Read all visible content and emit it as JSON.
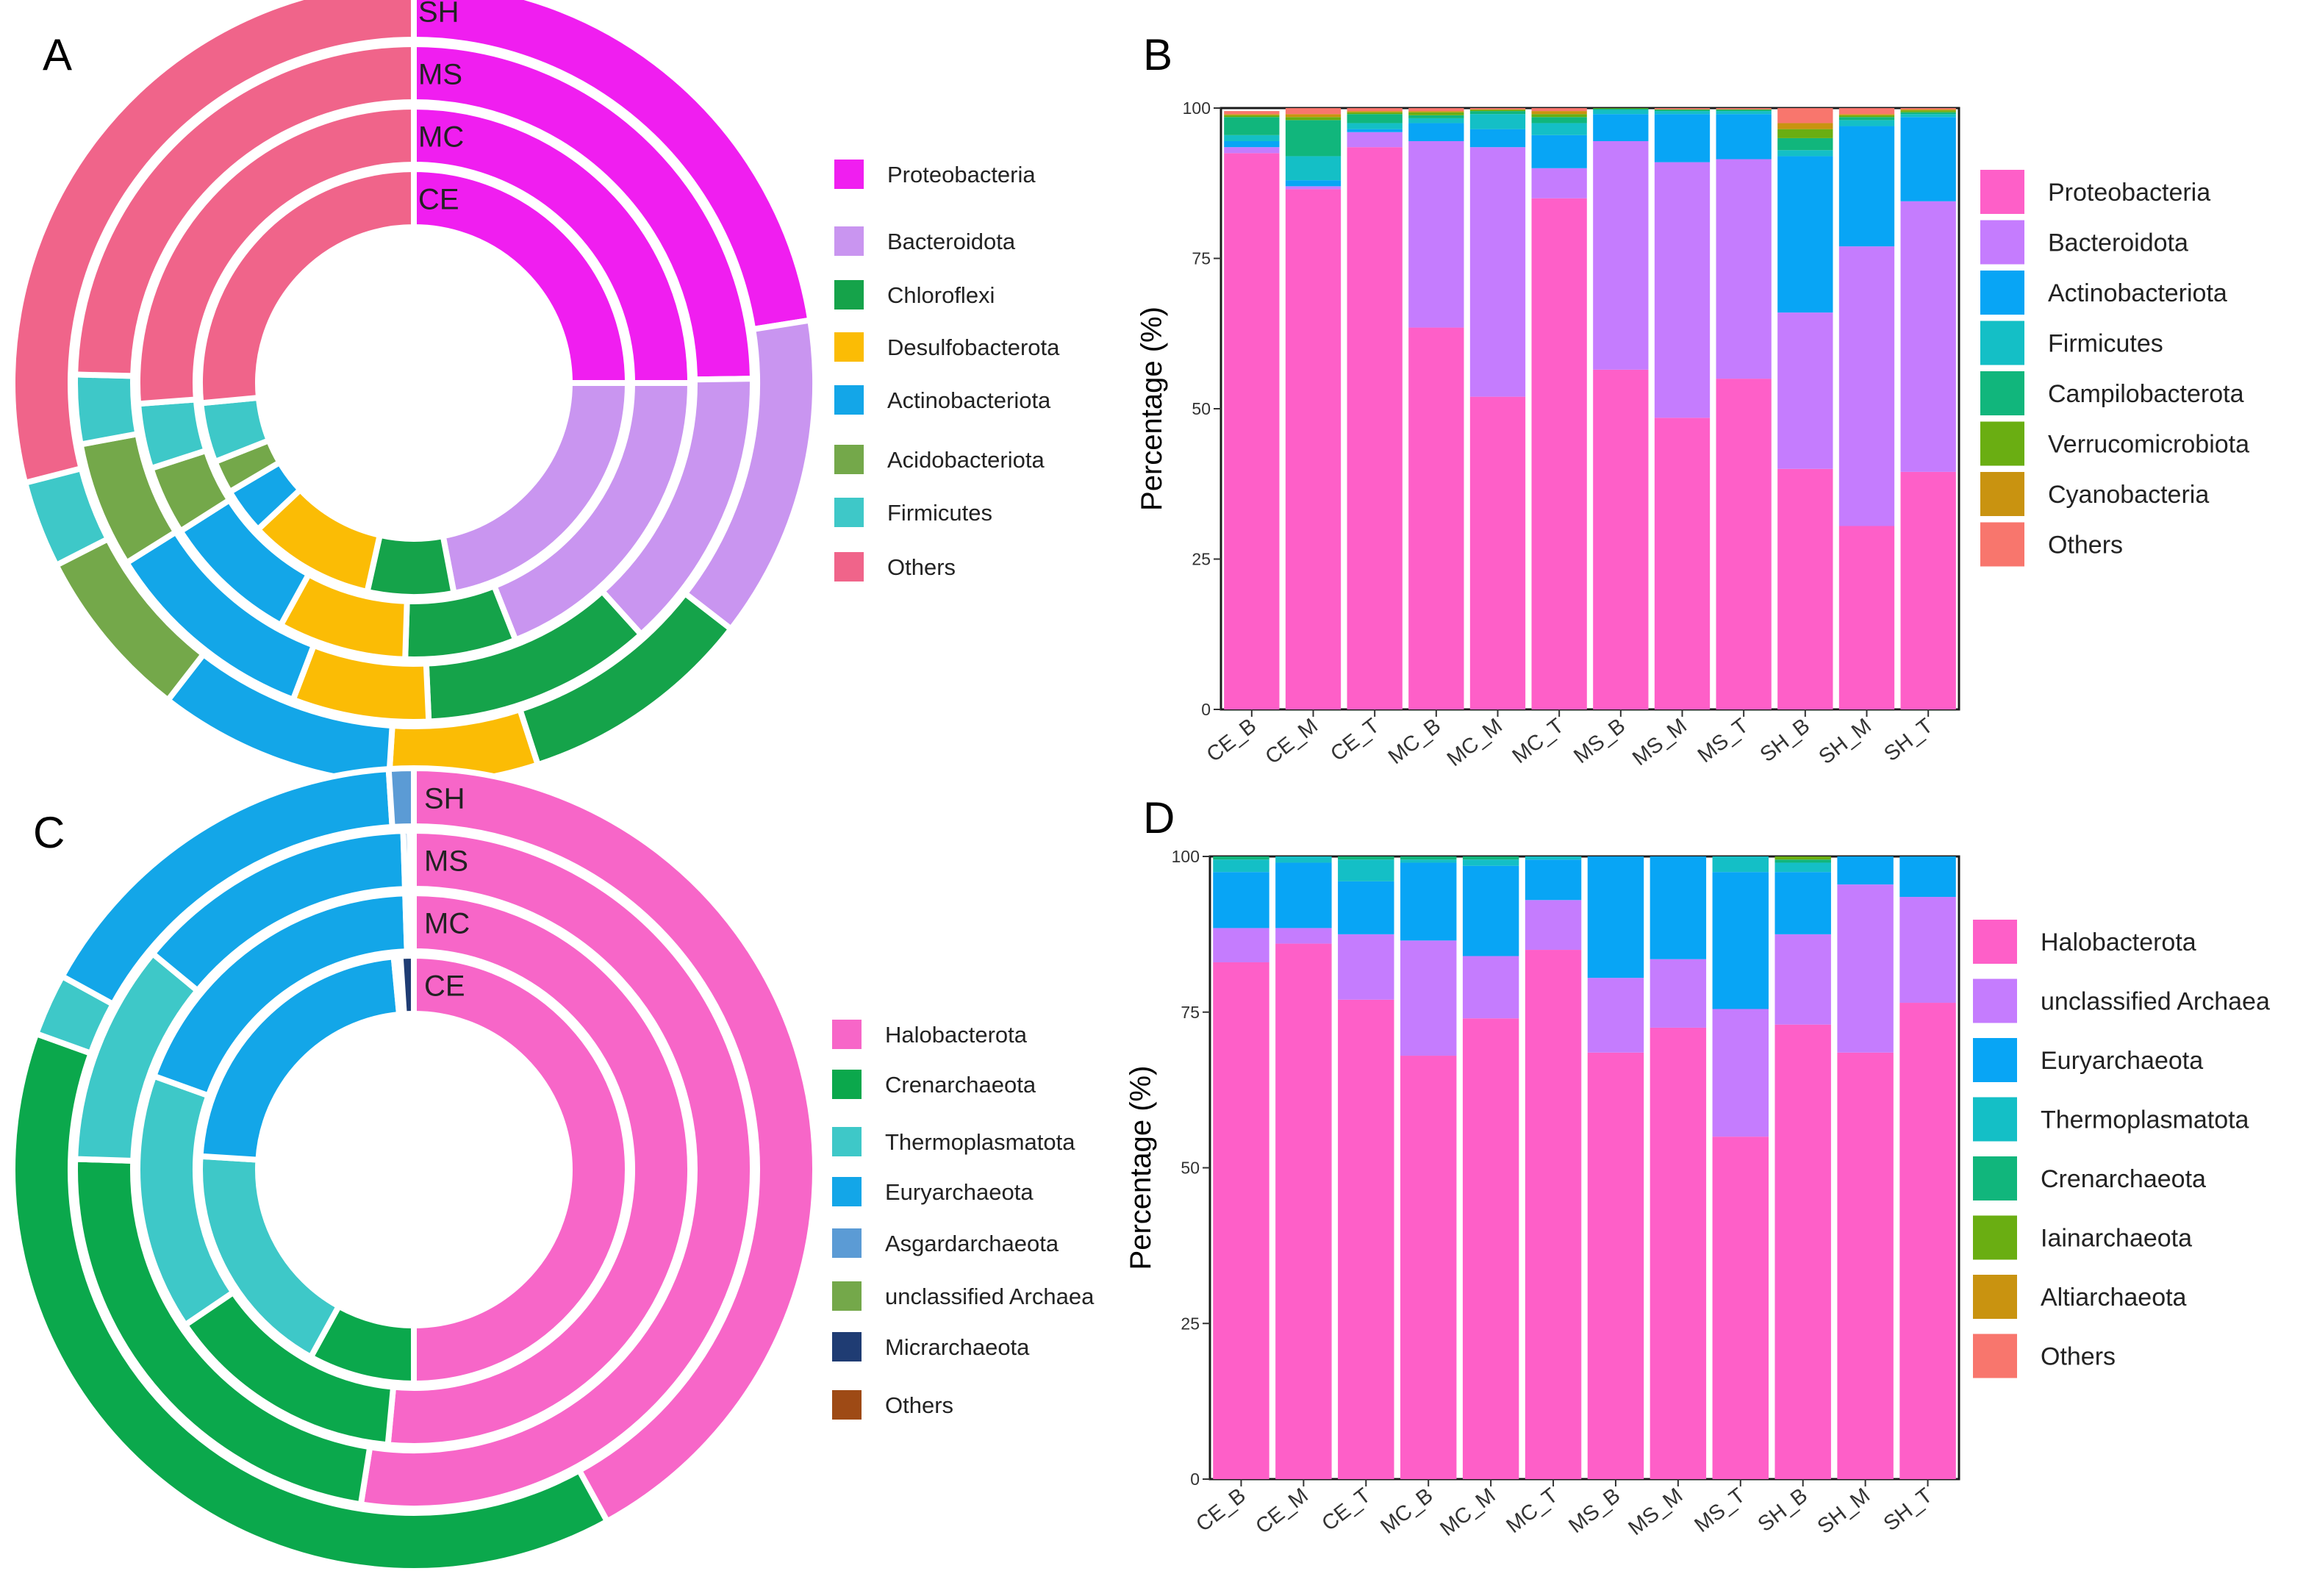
{
  "chart_data": [
    {
      "panel": "A",
      "type": "pie",
      "subtype": "nested-donut",
      "rings_inner_to_outer": [
        "CE",
        "MC",
        "MS",
        "SH"
      ],
      "legend": [
        "Proteobacteria",
        "Bacteroidota",
        "Chloroflexi",
        "Desulfobacterota",
        "Actinobacteriota",
        "Acidobacteriota",
        "Firmicutes",
        "Others"
      ],
      "colors": [
        "#f01ef0",
        "#c995f0",
        "#15a34a",
        "#fbbc05",
        "#13a6e8",
        "#74a84a",
        "#3ec8c8",
        "#f0648a"
      ],
      "percent_by_ring": {
        "CE": [
          25.0,
          22.0,
          6.5,
          9.5,
          3.5,
          2.5,
          4.5,
          26.5
        ],
        "MC": [
          25.0,
          19.0,
          6.5,
          7.5,
          8.0,
          4.0,
          3.8,
          26.2
        ],
        "MS": [
          24.8,
          13.5,
          11.0,
          6.5,
          10.3,
          6.0,
          3.3,
          24.6
        ],
        "SH": [
          22.5,
          13.0,
          9.5,
          6.0,
          9.5,
          7.0,
          3.5,
          29.0
        ]
      }
    },
    {
      "panel": "B",
      "type": "bar",
      "stacked": true,
      "ylabel": "Percentage (%)",
      "xlabel": "",
      "ylim": [
        0,
        100
      ],
      "yticks": [
        0,
        25,
        50,
        75,
        100
      ],
      "categories": [
        "CE_B",
        "CE_M",
        "CE_T",
        "MC_B",
        "MC_M",
        "MC_T",
        "MS_B",
        "MS_M",
        "MS_T",
        "SH_B",
        "SH_M",
        "SH_T"
      ],
      "series": [
        {
          "name": "Proteobacteria",
          "color": "#fe5fc8",
          "values": [
            92.5,
            86.5,
            93.5,
            63.5,
            52,
            85,
            56.5,
            48.5,
            55,
            40,
            30.5,
            39.5
          ]
        },
        {
          "name": "Bacteroidota",
          "color": "#c57cfe",
          "values": [
            1,
            0.5,
            2.5,
            31,
            41.5,
            5,
            38,
            42.5,
            36.5,
            26,
            46.5,
            45
          ]
        },
        {
          "name": "Actinobacteriota",
          "color": "#08a5f5",
          "values": [
            1,
            1,
            0.5,
            3,
            3,
            5.5,
            4.5,
            8,
            7.5,
            26,
            20,
            14
          ]
        },
        {
          "name": "Firmicutes",
          "color": "#14bfc6",
          "values": [
            1,
            4,
            1,
            0.8,
            2.5,
            2,
            0.7,
            0.5,
            0.5,
            1,
            1,
            0.5
          ]
        },
        {
          "name": "Campilobacterota",
          "color": "#11b67c",
          "values": [
            3,
            6,
            1.5,
            0.5,
            0.5,
            1,
            0.2,
            0.2,
            0.2,
            2,
            0.5,
            0.3
          ]
        },
        {
          "name": "Verrucomicrobiota",
          "color": "#6aae12",
          "values": [
            0.3,
            0.5,
            0.3,
            0.5,
            0.2,
            0.5,
            0.1,
            0.1,
            0.1,
            1.5,
            0.3,
            0.3
          ]
        },
        {
          "name": "Cyanobacteria",
          "color": "#c99310",
          "values": [
            0.2,
            0.5,
            0.2,
            0.2,
            0.1,
            0.5,
            0,
            0,
            0,
            1,
            0.2,
            0.2
          ]
        },
        {
          "name": "Others",
          "color": "#f8766d",
          "values": [
            0.5,
            1,
            0.5,
            0.5,
            0.2,
            0.5,
            0,
            0.2,
            0.2,
            2.5,
            1,
            0.2
          ]
        }
      ]
    },
    {
      "panel": "C",
      "type": "pie",
      "subtype": "nested-donut",
      "rings_inner_to_outer": [
        "CE",
        "MC",
        "MS",
        "SH"
      ],
      "legend": [
        "Halobacterota",
        "Crenarchaeota",
        "Thermoplasmatota",
        "Euryarchaeota",
        "Asgardarchaeota",
        "unclassified Archaea",
        "Micrarchaeota",
        "Others"
      ],
      "colors": [
        "#f766c8",
        "#0ba84c",
        "#3ec8c8",
        "#13a6e8",
        "#5b9bd5",
        "#74a84a",
        "#1f3c73",
        "#9e4a15"
      ],
      "percent_by_ring": {
        "CE": [
          50.0,
          8.0,
          18.0,
          22.5,
          0.3,
          0.2,
          1.0,
          0
        ],
        "MC": [
          51.5,
          14.0,
          15.0,
          19.0,
          0.2,
          0.2,
          0.1,
          0
        ],
        "MS": [
          52.5,
          23.0,
          10.5,
          13.5,
          0.3,
          0.2,
          0,
          0
        ],
        "SH": [
          42.0,
          38.5,
          2.5,
          16.0,
          1.0,
          0,
          0,
          0
        ]
      }
    },
    {
      "panel": "D",
      "type": "bar",
      "stacked": true,
      "ylabel": "Percentage (%)",
      "xlabel": "",
      "ylim": [
        0,
        100
      ],
      "yticks": [
        0,
        25,
        50,
        75,
        100
      ],
      "categories": [
        "CE_B",
        "CE_M",
        "CE_T",
        "MC_B",
        "MC_M",
        "MC_T",
        "MS_B",
        "MS_M",
        "MS_T",
        "SH_B",
        "SH_M",
        "SH_T"
      ],
      "series": [
        {
          "name": "Halobacterota",
          "color": "#fe5fc8",
          "values": [
            83,
            86,
            77,
            68,
            74,
            85,
            68.5,
            72.5,
            55,
            73,
            68.5,
            76.5
          ]
        },
        {
          "name": "unclassified Archaea",
          "color": "#c57cfe",
          "values": [
            5.5,
            2.5,
            10.5,
            18.5,
            10,
            8,
            12,
            11,
            20.5,
            14.5,
            27,
            17
          ]
        },
        {
          "name": "Euryarchaeota",
          "color": "#08a5f5",
          "values": [
            9,
            10.5,
            8.5,
            12.5,
            14.5,
            6.5,
            19.5,
            16.5,
            22,
            10,
            4.5,
            6.5
          ]
        },
        {
          "name": "Thermoplasmatota",
          "color": "#14bfc6",
          "values": [
            2,
            1,
            3.5,
            0.5,
            1,
            0.5,
            0,
            0,
            2.5,
            1.5,
            0,
            0
          ]
        },
        {
          "name": "Crenarchaeota",
          "color": "#11b67c",
          "values": [
            0.5,
            0,
            0.5,
            0.5,
            0.5,
            0,
            0,
            0,
            0,
            0.5,
            0,
            0
          ]
        },
        {
          "name": "Iainarchaeota",
          "color": "#6aae12",
          "values": [
            0,
            0,
            0,
            0,
            0,
            0,
            0,
            0,
            0,
            0.5,
            0,
            0
          ]
        },
        {
          "name": "Altiarchaeota",
          "color": "#c99310",
          "values": [
            0,
            0,
            0,
            0,
            0,
            0,
            0,
            0,
            0,
            0,
            0,
            0
          ]
        },
        {
          "name": "Others",
          "color": "#f8766d",
          "values": [
            0,
            0,
            0,
            0,
            0,
            0,
            0,
            0,
            0,
            0,
            0,
            0
          ]
        }
      ]
    }
  ],
  "panel_letters": {
    "a": "A",
    "b": "B",
    "c": "C",
    "d": "D"
  },
  "legends": {
    "a": [
      "Proteobacteria",
      "Bacteroidota",
      "Chloroflexi",
      "Desulfobacterota",
      "Actinobacteriota",
      "Acidobacteriota",
      "Firmicutes",
      "Others"
    ],
    "b": [
      "Proteobacteria",
      "Bacteroidota",
      "Actinobacteriota",
      "Firmicutes",
      "Campilobacterota",
      "Verrucomicrobiota",
      "Cyanobacteria",
      "Others"
    ],
    "c": [
      "Halobacterota",
      "Crenarchaeota",
      "Thermoplasmatota",
      "Euryarchaeota",
      "Asgardarchaeota",
      "unclassified Archaea",
      "Micrarchaeota",
      "Others"
    ],
    "d": [
      "Halobacterota",
      "unclassified Archaea",
      "Euryarchaeota",
      "Thermoplasmatota",
      "Crenarchaeota",
      "Iainarchaeota",
      "Altiarchaeota",
      "Others"
    ]
  }
}
